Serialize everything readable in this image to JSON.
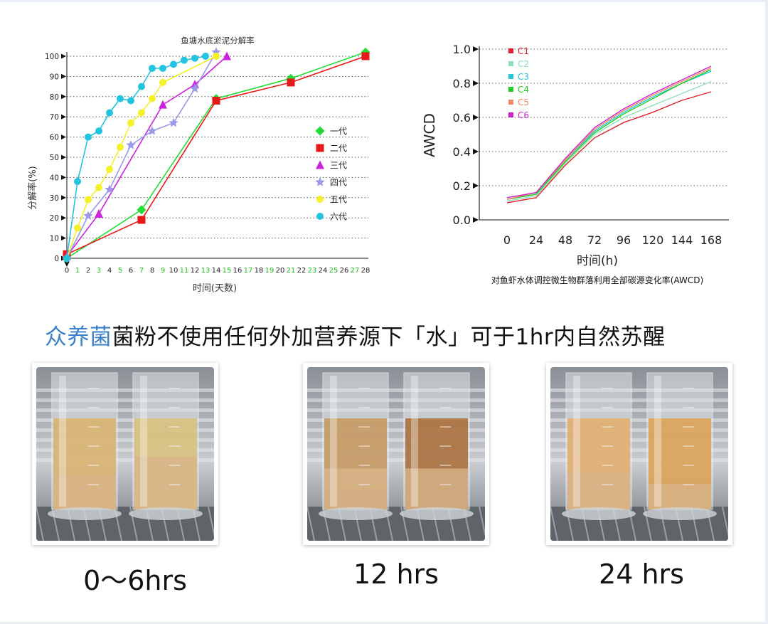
{
  "chart_data": [
    {
      "type": "line",
      "title": "鱼塘水底淤泥分解率",
      "xlabel": "时间(天数)",
      "ylabel": "分解率(%)",
      "xlim": [
        0,
        28
      ],
      "ylim": [
        0,
        100
      ],
      "xticks": [
        "0",
        "1",
        "2",
        "3",
        "4",
        "5",
        "6",
        "7",
        "8",
        "9",
        "10",
        "11",
        "12",
        "13",
        "14",
        "15",
        "16",
        "17",
        "18",
        "19",
        "20",
        "21",
        "22",
        "23",
        "24",
        "25",
        "26",
        "27",
        "28"
      ],
      "green_xticks": [
        1,
        3,
        5,
        7,
        9,
        11,
        13,
        15,
        17,
        19,
        21,
        23,
        25,
        27
      ],
      "yticks": [
        0,
        10,
        20,
        30,
        40,
        50,
        60,
        70,
        80,
        90,
        100
      ],
      "grid": true,
      "legend": "right",
      "series": [
        {
          "name": "一代",
          "color": "#22dd33",
          "marker": "diamond",
          "points": [
            [
              0,
              0
            ],
            [
              7,
              24
            ],
            [
              14,
              79
            ],
            [
              21,
              89
            ],
            [
              28,
              102
            ]
          ]
        },
        {
          "name": "二代",
          "color": "#e81818",
          "marker": "square",
          "points": [
            [
              0,
              2
            ],
            [
              7,
              19
            ],
            [
              14,
              78
            ],
            [
              21,
              87
            ],
            [
              28,
              100
            ]
          ]
        },
        {
          "name": "三代",
          "color": "#cc22dd",
          "marker": "triangle",
          "points": [
            [
              0,
              1
            ],
            [
              3,
              22
            ],
            [
              9,
              76
            ],
            [
              12,
              86
            ],
            [
              15,
              100
            ]
          ]
        },
        {
          "name": "四代",
          "color": "#9999e8",
          "marker": "star",
          "points": [
            [
              0,
              0
            ],
            [
              2,
              21
            ],
            [
              4,
              34
            ],
            [
              6,
              56
            ],
            [
              8,
              63
            ],
            [
              10,
              67
            ],
            [
              12,
              84
            ],
            [
              14,
              102
            ]
          ]
        },
        {
          "name": "五代",
          "color": "#f4f02a",
          "marker": "circle",
          "points": [
            [
              0,
              0
            ],
            [
              1,
              15
            ],
            [
              2,
              29
            ],
            [
              3,
              35
            ],
            [
              4,
              44
            ],
            [
              5,
              55
            ],
            [
              6,
              67
            ],
            [
              7,
              72
            ],
            [
              8,
              79
            ],
            [
              9,
              87
            ],
            [
              14,
              100
            ]
          ]
        },
        {
          "name": "六代",
          "color": "#22c4e0",
          "marker": "circle",
          "points": [
            [
              0,
              0
            ],
            [
              1,
              38
            ],
            [
              2,
              60
            ],
            [
              3,
              63
            ],
            [
              4,
              72
            ],
            [
              5,
              79
            ],
            [
              6,
              78
            ],
            [
              7,
              85
            ],
            [
              8,
              94
            ],
            [
              9,
              94
            ],
            [
              10,
              96
            ],
            [
              11,
              98
            ],
            [
              12,
              99
            ],
            [
              13,
              100
            ]
          ]
        }
      ]
    },
    {
      "type": "line",
      "title": "",
      "xlabel": "时间(h)",
      "ylabel": "AWCD",
      "caption": "对鱼虾水体调控微生物群落利用全部碳源变化率(AWCD)",
      "xlim": [
        0,
        168
      ],
      "ylim": [
        0,
        1.0
      ],
      "xticks": [
        "0",
        "24",
        "48",
        "72",
        "96",
        "120",
        "144",
        "168"
      ],
      "yticks": [
        "0.0",
        "0.2",
        "0.4",
        "0.6",
        "0.8",
        "1.0"
      ],
      "grid": true,
      "legend": "top-left",
      "series": [
        {
          "name": "C1",
          "color": "#e02030",
          "x": [
            0,
            24,
            48,
            72,
            96,
            120,
            144,
            168
          ],
          "values": [
            0.1,
            0.13,
            0.32,
            0.48,
            0.57,
            0.63,
            0.7,
            0.75
          ]
        },
        {
          "name": "C2",
          "color": "#8ee0b8",
          "x": [
            0,
            24,
            48,
            72,
            96,
            120,
            144,
            168
          ],
          "values": [
            0.11,
            0.14,
            0.33,
            0.5,
            0.6,
            0.67,
            0.74,
            0.81
          ]
        },
        {
          "name": "C3",
          "color": "#22c8d8",
          "x": [
            0,
            24,
            48,
            72,
            96,
            120,
            144,
            168
          ],
          "values": [
            0.12,
            0.15,
            0.35,
            0.52,
            0.63,
            0.72,
            0.8,
            0.87
          ]
        },
        {
          "name": "C4",
          "color": "#22cc22",
          "x": [
            0,
            24,
            48,
            72,
            96,
            120,
            144,
            168
          ],
          "values": [
            0.12,
            0.15,
            0.34,
            0.51,
            0.62,
            0.71,
            0.8,
            0.88
          ]
        },
        {
          "name": "C5",
          "color": "#f08a6a",
          "x": [
            0,
            24,
            48,
            72,
            96,
            120,
            144,
            168
          ],
          "values": [
            0.12,
            0.16,
            0.35,
            0.53,
            0.64,
            0.73,
            0.81,
            0.89
          ]
        },
        {
          "name": "C6",
          "color": "#cc22cc",
          "x": [
            0,
            24,
            48,
            72,
            96,
            120,
            144,
            168
          ],
          "values": [
            0.13,
            0.16,
            0.36,
            0.54,
            0.65,
            0.74,
            0.82,
            0.9
          ]
        }
      ]
    }
  ],
  "headline": {
    "brand": "众养菌",
    "rest": "菌粉不使用任何外加营养源下「水」可于1hr内自然苏醒"
  },
  "photos": [
    {
      "caption": "0～6hrs",
      "left": {
        "sediment": 0.62,
        "tint": "#d9b06a"
      },
      "right": {
        "sediment": 0.42,
        "tint": "#d8c078"
      }
    },
    {
      "caption": "12 hrs",
      "left": {
        "sediment": 0.55,
        "tint": "#c4955a"
      },
      "right": {
        "sediment": 0.55,
        "tint": "#a86a34"
      }
    },
    {
      "caption": "24 hrs",
      "left": {
        "sediment": 0.6,
        "tint": "#e0ac68"
      },
      "right": {
        "sediment": 0.72,
        "tint": "#dca04e"
      }
    }
  ]
}
